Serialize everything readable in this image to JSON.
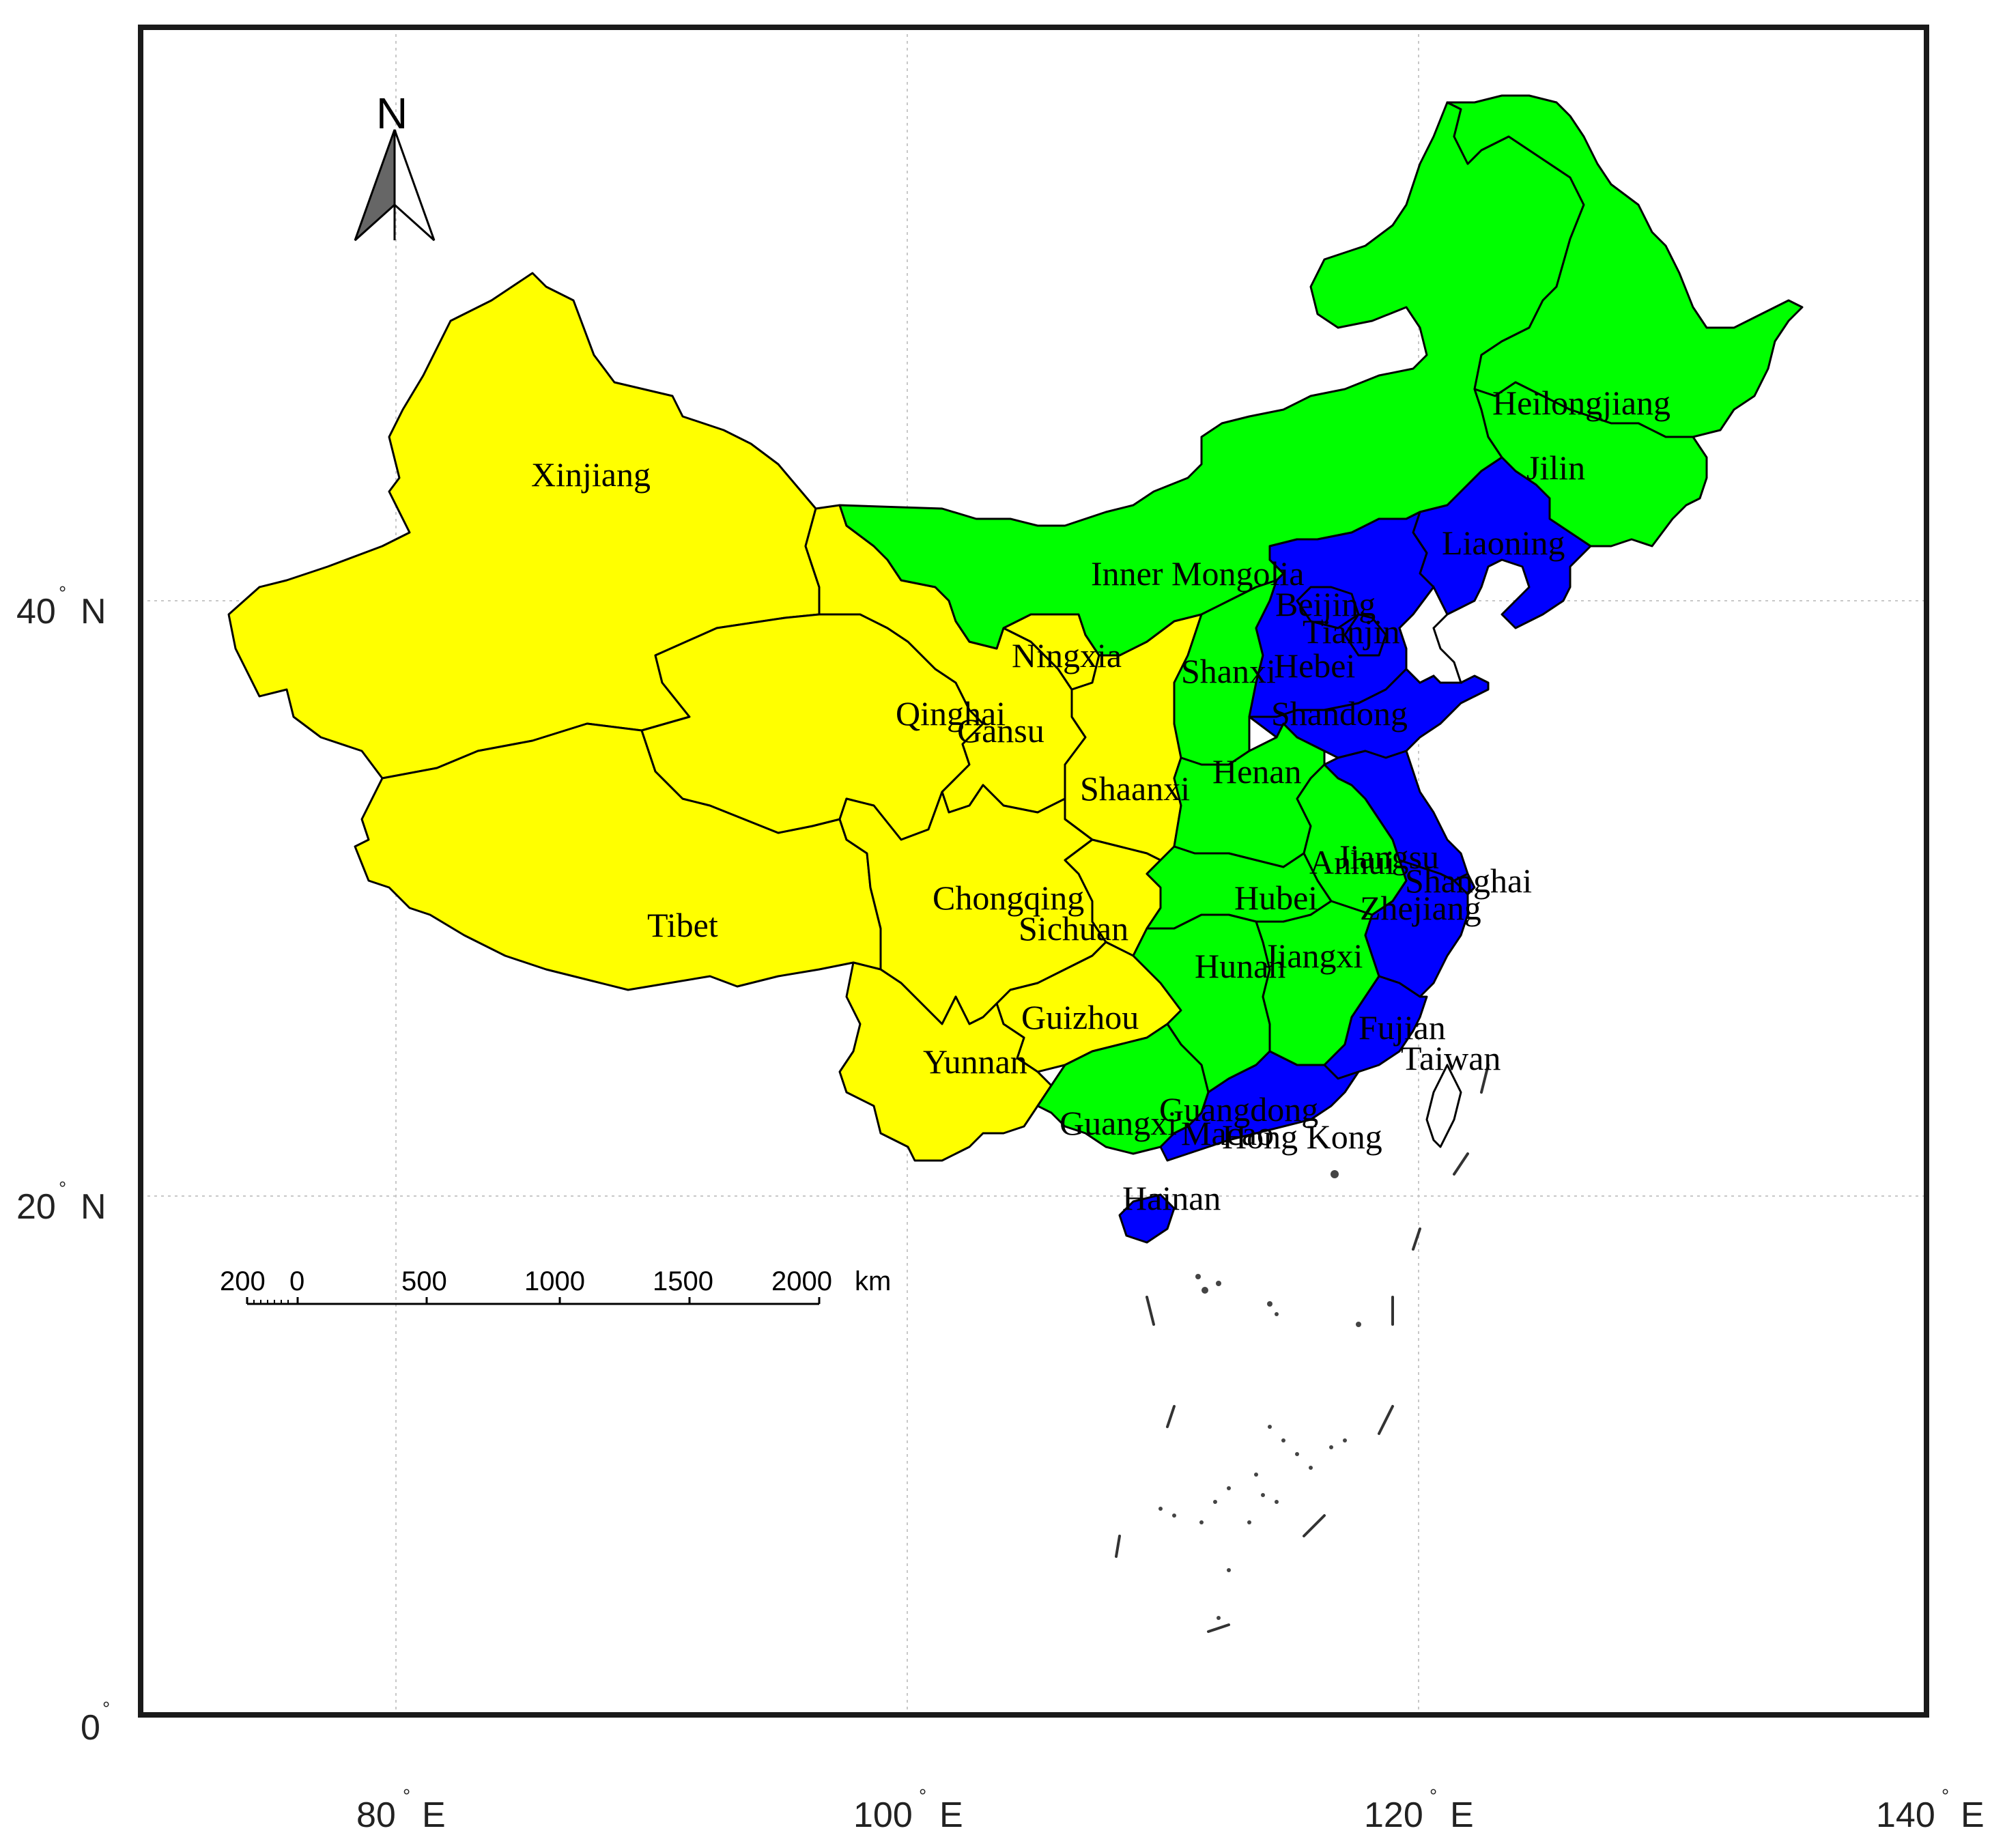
{
  "colors": {
    "yellow": "#ffff00",
    "green": "#00ff00",
    "blue": "#0000ff",
    "compass": "#666666"
  },
  "axes": {
    "lat_ticks": [
      "40",
      "20",
      "0"
    ],
    "lat_suffix": "N",
    "lon_ticks": [
      "80",
      "100",
      "120",
      "140"
    ],
    "lon_suffix": "E",
    "degree": "°"
  },
  "compass": {
    "letter": "N",
    "icon": "north-arrow-icon"
  },
  "scale_bar": {
    "labels": [
      "200",
      "0",
      "500",
      "1000",
      "1500",
      "2000"
    ],
    "unit": "km"
  },
  "provinces": [
    {
      "id": "xinjiang",
      "label": "Xinjiang",
      "group": "yellow"
    },
    {
      "id": "tibet",
      "label": "Tibet",
      "group": "yellow"
    },
    {
      "id": "qinghai",
      "label": "Qinghai",
      "group": "yellow"
    },
    {
      "id": "gansu",
      "label": "Gansu",
      "group": "yellow"
    },
    {
      "id": "ningxia",
      "label": "Ningxia",
      "group": "yellow"
    },
    {
      "id": "shaanxi",
      "label": "Shaanxi",
      "group": "yellow"
    },
    {
      "id": "sichuan",
      "label": "Sichuan",
      "group": "yellow"
    },
    {
      "id": "chongqing",
      "label": "Chongqing",
      "group": "yellow"
    },
    {
      "id": "guizhou",
      "label": "Guizhou",
      "group": "yellow"
    },
    {
      "id": "yunnan",
      "label": "Yunnan",
      "group": "yellow"
    },
    {
      "id": "inner_mongolia",
      "label": "Inner Mongolia",
      "group": "green"
    },
    {
      "id": "heilongjiang",
      "label": "Heilongjiang",
      "group": "green"
    },
    {
      "id": "jilin",
      "label": "Jilin",
      "group": "green"
    },
    {
      "id": "shanxi",
      "label": "Shanxi",
      "group": "green"
    },
    {
      "id": "henan",
      "label": "Henan",
      "group": "green"
    },
    {
      "id": "anhui",
      "label": "Anhui",
      "group": "green"
    },
    {
      "id": "hubei",
      "label": "Hubei",
      "group": "green"
    },
    {
      "id": "hunan",
      "label": "Hunan",
      "group": "green"
    },
    {
      "id": "jiangxi",
      "label": "Jiangxi",
      "group": "green"
    },
    {
      "id": "guangxi",
      "label": "Guangxi",
      "group": "green"
    },
    {
      "id": "liaoning",
      "label": "Liaoning",
      "group": "blue"
    },
    {
      "id": "beijing",
      "label": "Beijing",
      "group": "blue"
    },
    {
      "id": "tianjin",
      "label": "Tianjin",
      "group": "blue"
    },
    {
      "id": "hebei",
      "label": "Hebei",
      "group": "blue"
    },
    {
      "id": "shandong",
      "label": "Shandong",
      "group": "blue"
    },
    {
      "id": "jiangsu",
      "label": "Jiangsu",
      "group": "blue"
    },
    {
      "id": "shanghai",
      "label": "Shanghai",
      "group": "blue"
    },
    {
      "id": "zhejiang",
      "label": "Zhejiang",
      "group": "blue"
    },
    {
      "id": "fujian",
      "label": "Fujian",
      "group": "blue"
    },
    {
      "id": "guangdong",
      "label": "Guangdong",
      "group": "blue"
    },
    {
      "id": "hong_kong",
      "label": "Hong Kong",
      "group": "blue"
    },
    {
      "id": "macao",
      "label": "Macao",
      "group": "blue"
    },
    {
      "id": "hainan",
      "label": "Hainan",
      "group": "blue"
    },
    {
      "id": "taiwan",
      "label": "Taiwan",
      "group": "none"
    }
  ]
}
